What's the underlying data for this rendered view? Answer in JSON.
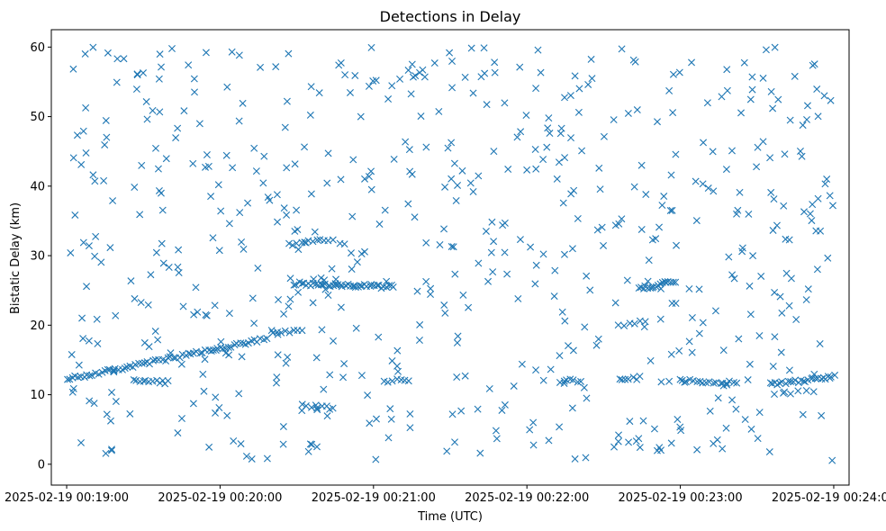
{
  "chart_data": {
    "type": "scatter",
    "title": "Detections in Delay",
    "xlabel": "Time (UTC)",
    "ylabel": "Bistatic Delay (km)",
    "marker": "x",
    "color": "#1f77b4",
    "x_unit": "seconds since 2025-02-19 00:19:00",
    "xlim": [
      -6,
      306
    ],
    "ylim": [
      -3,
      62.5
    ],
    "x_ticks": [
      {
        "value": 0,
        "label": "2025-02-19 00:19:00"
      },
      {
        "value": 60,
        "label": "2025-02-19 00:20:00"
      },
      {
        "value": 120,
        "label": "2025-02-19 00:21:00"
      },
      {
        "value": 180,
        "label": "2025-02-19 00:22:00"
      },
      {
        "value": 240,
        "label": "2025-02-19 00:23:00"
      },
      {
        "value": 300,
        "label": "2025-02-19 00:24:00"
      }
    ],
    "y_ticks": [
      {
        "value": 0,
        "label": "0"
      },
      {
        "value": 10,
        "label": "10"
      },
      {
        "value": 20,
        "label": "20"
      },
      {
        "value": 30,
        "label": "30"
      },
      {
        "value": 40,
        "label": "40"
      },
      {
        "value": 50,
        "label": "50"
      },
      {
        "value": 60,
        "label": "60"
      }
    ],
    "tracks": [
      {
        "name": "track-rising-1",
        "x_start": 0,
        "x_end": 78,
        "y_start": 12.2,
        "y_end": 18.0,
        "count": 70
      },
      {
        "name": "track-rising-2",
        "x_start": 81,
        "x_end": 92,
        "y_start": 18.8,
        "y_end": 19.2,
        "count": 8
      },
      {
        "name": "track-cluster-a",
        "x_start": 26,
        "x_end": 40,
        "y_start": 12.0,
        "y_end": 11.8,
        "count": 12
      },
      {
        "name": "track-upper-1",
        "x_start": 87,
        "x_end": 104,
        "y_start": 31.6,
        "y_end": 32.4,
        "count": 12
      },
      {
        "name": "track-mid-1",
        "x_start": 89,
        "x_end": 128,
        "y_start": 26.0,
        "y_end": 25.5,
        "count": 42
      },
      {
        "name": "track-low-2",
        "x_start": 94,
        "x_end": 104,
        "y_start": 8.2,
        "y_end": 8.2,
        "count": 6
      },
      {
        "name": "track-low-3",
        "x_start": 124,
        "x_end": 134,
        "y_start": 12.0,
        "y_end": 12.0,
        "count": 7
      },
      {
        "name": "track-low-4",
        "x_start": 193,
        "x_end": 201,
        "y_start": 12.0,
        "y_end": 12.0,
        "count": 7
      },
      {
        "name": "track-mid-2",
        "x_start": 216,
        "x_end": 226,
        "y_start": 20.0,
        "y_end": 20.6,
        "count": 6
      },
      {
        "name": "track-mid-3",
        "x_start": 224,
        "x_end": 238,
        "y_start": 25.2,
        "y_end": 26.4,
        "count": 18
      },
      {
        "name": "track-low-5",
        "x_start": 216,
        "x_end": 224,
        "y_start": 12.4,
        "y_end": 12.4,
        "count": 7
      },
      {
        "name": "track-low-6",
        "x_start": 240,
        "x_end": 262,
        "y_start": 12.0,
        "y_end": 11.8,
        "count": 18
      },
      {
        "name": "track-low-7",
        "x_start": 275,
        "x_end": 300,
        "y_start": 11.5,
        "y_end": 12.6,
        "count": 26
      },
      {
        "name": "track-low-8",
        "x_start": 277,
        "x_end": 292,
        "y_start": 10.2,
        "y_end": 10.5,
        "count": 6
      }
    ],
    "clutter_count": 620,
    "clutter_x_range": [
      0,
      300
    ],
    "clutter_y_range": [
      0.5,
      60
    ]
  }
}
